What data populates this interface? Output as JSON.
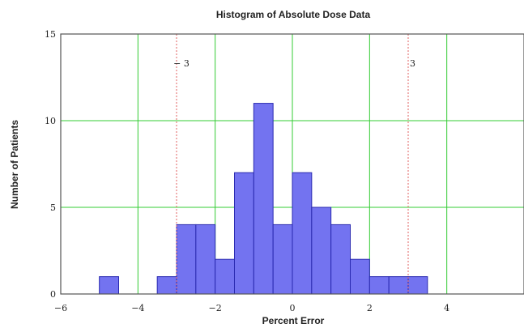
{
  "chart_data": {
    "type": "bar",
    "title": "Histogram of Absolute Dose Data",
    "xlabel": "Percent Error",
    "ylabel": "Number of Patients",
    "xlim": [
      -6,
      6
    ],
    "ylim": [
      0,
      15
    ],
    "bin_width": 0.5,
    "x_ticks": [
      {
        "value": -6,
        "label": "−6"
      },
      {
        "value": -4,
        "label": "−4"
      },
      {
        "value": -2,
        "label": "−2"
      },
      {
        "value": 0,
        "label": "0"
      },
      {
        "value": 2,
        "label": "2"
      },
      {
        "value": 4,
        "label": "4"
      }
    ],
    "y_ticks": [
      {
        "value": 0,
        "label": "0"
      },
      {
        "value": 5,
        "label": "5"
      },
      {
        "value": 10,
        "label": "10"
      },
      {
        "value": 15,
        "label": "15"
      }
    ],
    "grid": true,
    "bins": [
      {
        "left": -5.0,
        "right": -4.5,
        "count": 1
      },
      {
        "left": -3.5,
        "right": -3.0,
        "count": 1
      },
      {
        "left": -3.0,
        "right": -2.5,
        "count": 4
      },
      {
        "left": -2.5,
        "right": -2.0,
        "count": 4
      },
      {
        "left": -2.0,
        "right": -1.5,
        "count": 2
      },
      {
        "left": -1.5,
        "right": -1.0,
        "count": 7
      },
      {
        "left": -1.0,
        "right": -0.5,
        "count": 11
      },
      {
        "left": -0.5,
        "right": 0.0,
        "count": 4
      },
      {
        "left": 0.0,
        "right": 0.5,
        "count": 7
      },
      {
        "left": 0.5,
        "right": 1.0,
        "count": 5
      },
      {
        "left": 1.0,
        "right": 1.5,
        "count": 4
      },
      {
        "left": 1.5,
        "right": 2.0,
        "count": 2
      },
      {
        "left": 2.0,
        "right": 2.5,
        "count": 1
      },
      {
        "left": 2.5,
        "right": 3.0,
        "count": 1
      },
      {
        "left": 3.0,
        "right": 3.5,
        "count": 1
      }
    ],
    "reference_lines": [
      {
        "value": -3,
        "label": "− 3"
      },
      {
        "value": 3,
        "label": "3"
      }
    ],
    "colors": {
      "bar_fill": "#7373f0",
      "bar_stroke": "#2a2ab0",
      "grid": "#33cc33",
      "reference": "#e06060",
      "axis": "#555555"
    }
  }
}
